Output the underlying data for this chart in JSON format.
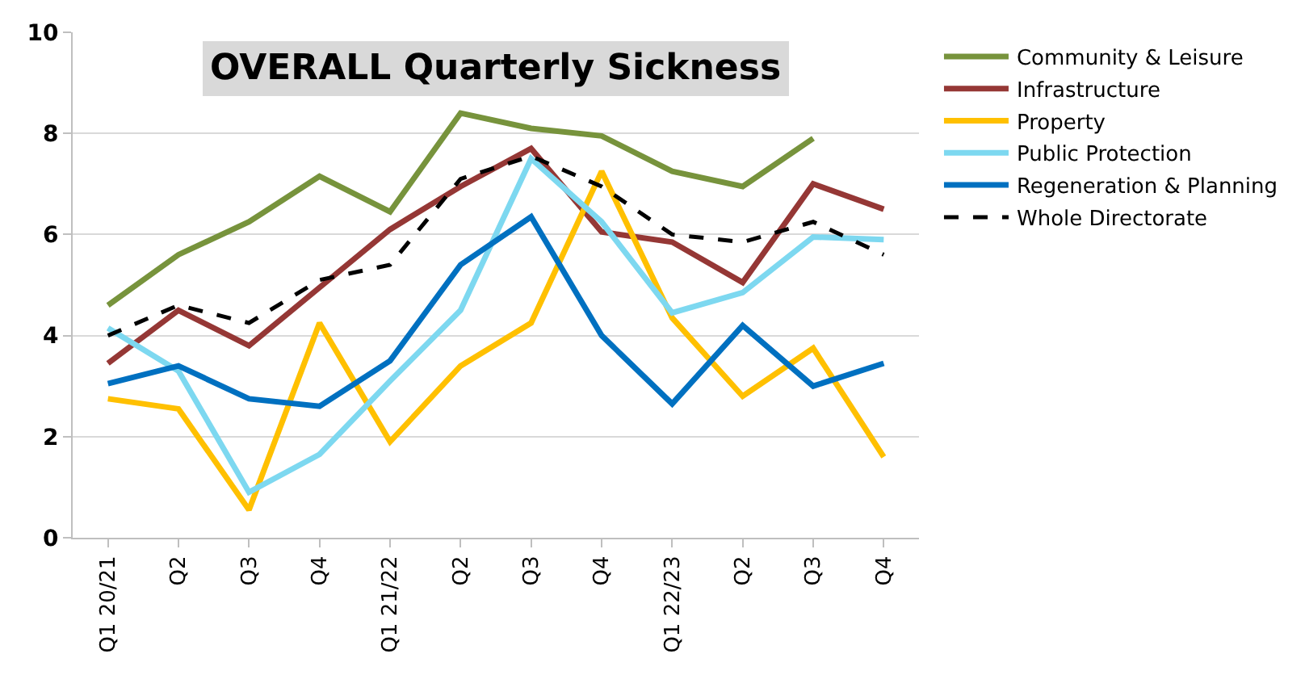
{
  "chart_data": {
    "type": "line",
    "title": "OVERALL Quarterly Sickness",
    "categories": [
      "Q1 20/21",
      "Q2",
      "Q3",
      "Q4",
      "Q1 21/22",
      "Q2",
      "Q3",
      "Q4",
      "Q1 22/23",
      "Q2",
      "Q3",
      "Q4"
    ],
    "series": [
      {
        "name": "Community & Leisure",
        "color": "#77933c",
        "values": [
          4.6,
          5.6,
          6.25,
          7.15,
          6.45,
          8.4,
          8.1,
          7.95,
          7.25,
          6.95,
          7.9,
          null
        ]
      },
      {
        "name": "Infrastructure",
        "color": "#953735",
        "values": [
          3.45,
          4.5,
          3.8,
          4.95,
          6.1,
          6.95,
          7.7,
          6.05,
          5.85,
          5.05,
          7.0,
          6.5
        ]
      },
      {
        "name": "Property",
        "color": "#ffc000",
        "values": [
          2.75,
          2.55,
          0.55,
          4.25,
          1.9,
          3.4,
          4.25,
          7.25,
          4.35,
          2.8,
          3.75,
          1.6
        ]
      },
      {
        "name": "Public Protection",
        "color": "#7dd8f0",
        "values": [
          4.15,
          3.3,
          0.9,
          1.65,
          3.1,
          4.5,
          7.5,
          6.25,
          4.45,
          4.85,
          5.95,
          5.9
        ]
      },
      {
        "name": "Regeneration & Planning",
        "color": "#0070c0",
        "values": [
          3.05,
          3.4,
          2.75,
          2.6,
          3.5,
          5.4,
          6.35,
          4.0,
          2.65,
          4.2,
          3.0,
          3.45
        ]
      },
      {
        "name": "Whole Directorate",
        "color": "#000000",
        "line_style": "dashed",
        "values": [
          4.0,
          4.6,
          4.25,
          5.1,
          5.4,
          7.1,
          7.55,
          6.95,
          6.0,
          5.85,
          6.25,
          5.6
        ]
      }
    ],
    "ylim": [
      0,
      10
    ],
    "yticks": [
      0,
      2,
      4,
      6,
      8,
      10
    ],
    "grid": "y",
    "legend": "right",
    "marker": "none"
  }
}
